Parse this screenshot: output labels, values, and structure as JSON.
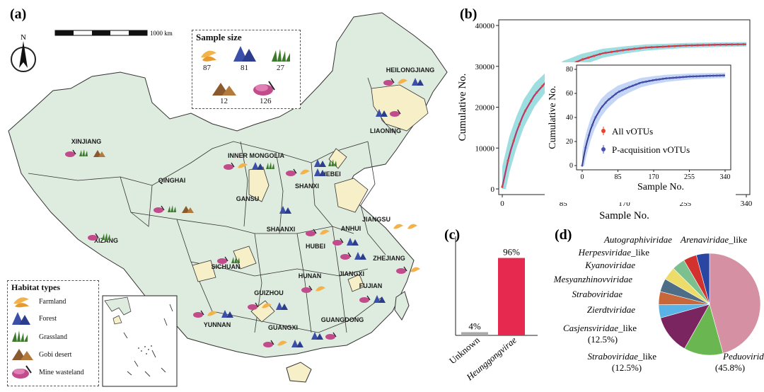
{
  "panels": {
    "a": "(a)",
    "b": "(b)",
    "c": "(c)",
    "d": "(d)"
  },
  "map": {
    "compass": "N",
    "scale_label": "1000 km",
    "sample_size": {
      "title": "Sample size",
      "items": [
        {
          "habitat": "Farmland",
          "icon": "wheat-icon",
          "value": "87"
        },
        {
          "habitat": "Forest",
          "icon": "forest-icon",
          "value": "81"
        },
        {
          "habitat": "Grassland",
          "icon": "grass-icon",
          "value": "27"
        },
        {
          "habitat": "Gobi desert",
          "icon": "desert-icon",
          "value": "12"
        },
        {
          "habitat": "Mine wasteland",
          "icon": "mine-icon",
          "value": "126"
        }
      ]
    },
    "habitat_legend": {
      "title": "Habitat types",
      "items": [
        "Farmland",
        "Forest",
        "Grassland",
        "Gobi desert",
        "Mine wasteland"
      ]
    },
    "provinces": [
      {
        "name": "HEILONGJIANG",
        "habitats": [
          "mine",
          "farm",
          "forest"
        ]
      },
      {
        "name": "LIAONING",
        "habitats": [
          "forest",
          "mine"
        ]
      },
      {
        "name": "XINJIANG",
        "habitats": [
          "mine",
          "grass",
          "desert"
        ]
      },
      {
        "name": "INNER MONGOLIA",
        "habitats": [
          "mine",
          "farm",
          "forest",
          "grass"
        ]
      },
      {
        "name": "HEBEI",
        "habitats": [
          "forest",
          "grass"
        ]
      },
      {
        "name": "SHANXI",
        "habitats": [
          "mine",
          "farm",
          "forest"
        ]
      },
      {
        "name": "QINGHAI",
        "habitats": [
          "mine",
          "grass",
          "desert"
        ]
      },
      {
        "name": "GANSU",
        "habitats": []
      },
      {
        "name": "SHAANXI",
        "habitats": [
          "forest"
        ]
      },
      {
        "name": "JIANGSU",
        "habitats": [
          "farm",
          "farm"
        ]
      },
      {
        "name": "ANHUI",
        "habitats": [
          "mine",
          "forest"
        ]
      },
      {
        "name": "XIZANG",
        "habitats": [
          "mine",
          "grass"
        ]
      },
      {
        "name": "HUBEI",
        "habitats": [
          "mine",
          "farm"
        ]
      },
      {
        "name": "ZHEJIANG",
        "habitats": [
          "mine",
          "farm"
        ]
      },
      {
        "name": "SICHUAN",
        "habitats": [
          "mine",
          "grass"
        ]
      },
      {
        "name": "HUNAN",
        "habitats": [
          "mine",
          "farm"
        ]
      },
      {
        "name": "JIANGXI",
        "habitats": [
          "mine",
          "forest"
        ]
      },
      {
        "name": "FUJIAN",
        "habitats": [
          "mine",
          "forest"
        ]
      },
      {
        "name": "GUIZHOU",
        "habitats": [
          "mine",
          "farm",
          "forest"
        ]
      },
      {
        "name": "YUNNAN",
        "habitats": [
          "mine",
          "farm",
          "forest"
        ]
      },
      {
        "name": "GUANGXI",
        "habitats": [
          "mine",
          "farm",
          "forest"
        ]
      },
      {
        "name": "GUANGDONG",
        "habitats": [
          "forest",
          "mine"
        ]
      }
    ]
  },
  "chart_data": [
    {
      "panel": "b",
      "type": "line",
      "title": "",
      "xlabel": "Sample No.",
      "ylabel": "Cumulative No.",
      "xlim": [
        0,
        340
      ],
      "ylim": [
        0,
        40000
      ],
      "xticks": [
        "0",
        "85",
        "170",
        "255",
        "340"
      ],
      "yticks": [
        "0",
        "10000",
        "20000",
        "30000",
        "40000"
      ],
      "series": [
        {
          "name": "All vOTUs",
          "color": "#e8412f",
          "band_color": "#7fd3d6",
          "x": [
            0,
            5,
            10,
            20,
            30,
            45,
            60,
            85,
            110,
            140,
            170,
            200,
            255,
            300,
            340
          ],
          "y": [
            500,
            4500,
            8500,
            14000,
            18500,
            23000,
            26000,
            29500,
            31600,
            33200,
            34000,
            34600,
            35100,
            35300,
            35400
          ]
        },
        {
          "name": "P-acquisition vOTUs",
          "color": "#4a4fb3",
          "band_color": "#a9c4f2",
          "x": [
            0,
            5,
            10,
            20,
            30,
            45,
            60,
            85,
            110,
            140,
            170,
            200,
            255,
            300,
            340
          ],
          "y": [
            0,
            10,
            18,
            30,
            39,
            48,
            54,
            61,
            65,
            69,
            71,
            72.5,
            74,
            74.6,
            75
          ]
        }
      ],
      "inset": {
        "xlabel": "Sample No.",
        "ylabel": "Cumulative No.",
        "xlim": [
          0,
          340
        ],
        "ylim": [
          0,
          80
        ],
        "xticks": [
          "0",
          "85",
          "170",
          "255",
          "340"
        ],
        "yticks": [
          "0",
          "20",
          "40",
          "60",
          "80"
        ],
        "legend": [
          "All vOTUs",
          "P-acquisition vOTUs"
        ]
      }
    },
    {
      "panel": "c",
      "type": "bar",
      "categories": [
        "Unknown",
        "Heunggongvirae"
      ],
      "values": [
        4,
        96
      ],
      "labels": [
        "4%",
        "96%"
      ],
      "colors": [
        "#a9a9a9",
        "#e5294f"
      ],
      "ylim": [
        0,
        100
      ]
    },
    {
      "panel": "d",
      "type": "pie",
      "slices": [
        {
          "label": "Peduoviridae",
          "italic": "Peduoviridae",
          "suffix": "",
          "value": 45.8,
          "pct": "(45.8%)",
          "color": "#d591a3"
        },
        {
          "label": "Straboviridae_like",
          "italic": "Straboviridae",
          "suffix": "_like",
          "value": 12.5,
          "pct": "(12.5%)",
          "color": "#6ab651"
        },
        {
          "label": "Casjensviridae_like",
          "italic": "Casjensviridae",
          "suffix": "_like",
          "value": 12.5,
          "pct": "(12.5%)",
          "color": "#7b2560"
        },
        {
          "label": "Zierdtviridae",
          "italic": "Zierdtviridae",
          "suffix": "",
          "value": 4.2,
          "pct": "",
          "color": "#5ab3e6"
        },
        {
          "label": "Straboviridae",
          "italic": "Straboviridae",
          "suffix": "",
          "value": 4.2,
          "pct": "",
          "color": "#c8683a"
        },
        {
          "label": "Mesyanzhinovviridae",
          "italic": "Mesyanzhinovviridae",
          "suffix": "",
          "value": 4.2,
          "pct": "",
          "color": "#4d6e86"
        },
        {
          "label": "Kyanoviridae",
          "italic": "Kyanoviridae",
          "suffix": "",
          "value": 4.2,
          "pct": "",
          "color": "#eedc6a"
        },
        {
          "label": "Herpesviridae_like",
          "italic": "Herpesviridae",
          "suffix": "_like",
          "value": 4.2,
          "pct": "",
          "color": "#7dc08f"
        },
        {
          "label": "Autographiviridae",
          "italic": "Autographiviridae",
          "suffix": "",
          "value": 4.2,
          "pct": "",
          "color": "#d2322e"
        },
        {
          "label": "Arenaviridae_like",
          "italic": "Arenaviridae",
          "suffix": "_like",
          "value": 4.2,
          "pct": "",
          "color": "#2846a2"
        }
      ]
    }
  ]
}
